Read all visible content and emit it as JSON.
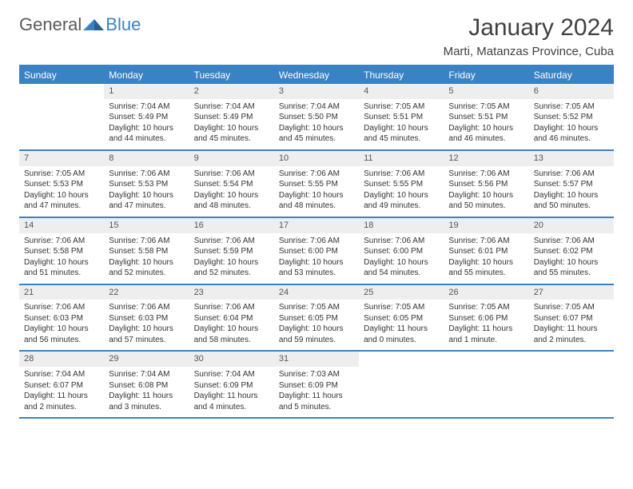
{
  "logo": {
    "part1": "General",
    "part2": "Blue"
  },
  "title": "January 2024",
  "location": "Marti, Matanzas Province, Cuba",
  "colors": {
    "accent": "#3b82c4",
    "header_bg": "#3b82c4",
    "header_text": "#ffffff",
    "daynum_bg": "#eeeeee",
    "text": "#333333",
    "background": "#ffffff"
  },
  "typography": {
    "title_fontsize": 30,
    "location_fontsize": 15,
    "dayheader_fontsize": 12,
    "cell_fontsize": 10
  },
  "day_headers": [
    "Sunday",
    "Monday",
    "Tuesday",
    "Wednesday",
    "Thursday",
    "Friday",
    "Saturday"
  ],
  "weeks": [
    [
      {
        "day": "",
        "sunrise": "",
        "sunset": "",
        "daylight": ""
      },
      {
        "day": "1",
        "sunrise": "Sunrise: 7:04 AM",
        "sunset": "Sunset: 5:49 PM",
        "daylight": "Daylight: 10 hours and 44 minutes."
      },
      {
        "day": "2",
        "sunrise": "Sunrise: 7:04 AM",
        "sunset": "Sunset: 5:49 PM",
        "daylight": "Daylight: 10 hours and 45 minutes."
      },
      {
        "day": "3",
        "sunrise": "Sunrise: 7:04 AM",
        "sunset": "Sunset: 5:50 PM",
        "daylight": "Daylight: 10 hours and 45 minutes."
      },
      {
        "day": "4",
        "sunrise": "Sunrise: 7:05 AM",
        "sunset": "Sunset: 5:51 PM",
        "daylight": "Daylight: 10 hours and 45 minutes."
      },
      {
        "day": "5",
        "sunrise": "Sunrise: 7:05 AM",
        "sunset": "Sunset: 5:51 PM",
        "daylight": "Daylight: 10 hours and 46 minutes."
      },
      {
        "day": "6",
        "sunrise": "Sunrise: 7:05 AM",
        "sunset": "Sunset: 5:52 PM",
        "daylight": "Daylight: 10 hours and 46 minutes."
      }
    ],
    [
      {
        "day": "7",
        "sunrise": "Sunrise: 7:05 AM",
        "sunset": "Sunset: 5:53 PM",
        "daylight": "Daylight: 10 hours and 47 minutes."
      },
      {
        "day": "8",
        "sunrise": "Sunrise: 7:06 AM",
        "sunset": "Sunset: 5:53 PM",
        "daylight": "Daylight: 10 hours and 47 minutes."
      },
      {
        "day": "9",
        "sunrise": "Sunrise: 7:06 AM",
        "sunset": "Sunset: 5:54 PM",
        "daylight": "Daylight: 10 hours and 48 minutes."
      },
      {
        "day": "10",
        "sunrise": "Sunrise: 7:06 AM",
        "sunset": "Sunset: 5:55 PM",
        "daylight": "Daylight: 10 hours and 48 minutes."
      },
      {
        "day": "11",
        "sunrise": "Sunrise: 7:06 AM",
        "sunset": "Sunset: 5:55 PM",
        "daylight": "Daylight: 10 hours and 49 minutes."
      },
      {
        "day": "12",
        "sunrise": "Sunrise: 7:06 AM",
        "sunset": "Sunset: 5:56 PM",
        "daylight": "Daylight: 10 hours and 50 minutes."
      },
      {
        "day": "13",
        "sunrise": "Sunrise: 7:06 AM",
        "sunset": "Sunset: 5:57 PM",
        "daylight": "Daylight: 10 hours and 50 minutes."
      }
    ],
    [
      {
        "day": "14",
        "sunrise": "Sunrise: 7:06 AM",
        "sunset": "Sunset: 5:58 PM",
        "daylight": "Daylight: 10 hours and 51 minutes."
      },
      {
        "day": "15",
        "sunrise": "Sunrise: 7:06 AM",
        "sunset": "Sunset: 5:58 PM",
        "daylight": "Daylight: 10 hours and 52 minutes."
      },
      {
        "day": "16",
        "sunrise": "Sunrise: 7:06 AM",
        "sunset": "Sunset: 5:59 PM",
        "daylight": "Daylight: 10 hours and 52 minutes."
      },
      {
        "day": "17",
        "sunrise": "Sunrise: 7:06 AM",
        "sunset": "Sunset: 6:00 PM",
        "daylight": "Daylight: 10 hours and 53 minutes."
      },
      {
        "day": "18",
        "sunrise": "Sunrise: 7:06 AM",
        "sunset": "Sunset: 6:00 PM",
        "daylight": "Daylight: 10 hours and 54 minutes."
      },
      {
        "day": "19",
        "sunrise": "Sunrise: 7:06 AM",
        "sunset": "Sunset: 6:01 PM",
        "daylight": "Daylight: 10 hours and 55 minutes."
      },
      {
        "day": "20",
        "sunrise": "Sunrise: 7:06 AM",
        "sunset": "Sunset: 6:02 PM",
        "daylight": "Daylight: 10 hours and 55 minutes."
      }
    ],
    [
      {
        "day": "21",
        "sunrise": "Sunrise: 7:06 AM",
        "sunset": "Sunset: 6:03 PM",
        "daylight": "Daylight: 10 hours and 56 minutes."
      },
      {
        "day": "22",
        "sunrise": "Sunrise: 7:06 AM",
        "sunset": "Sunset: 6:03 PM",
        "daylight": "Daylight: 10 hours and 57 minutes."
      },
      {
        "day": "23",
        "sunrise": "Sunrise: 7:06 AM",
        "sunset": "Sunset: 6:04 PM",
        "daylight": "Daylight: 10 hours and 58 minutes."
      },
      {
        "day": "24",
        "sunrise": "Sunrise: 7:05 AM",
        "sunset": "Sunset: 6:05 PM",
        "daylight": "Daylight: 10 hours and 59 minutes."
      },
      {
        "day": "25",
        "sunrise": "Sunrise: 7:05 AM",
        "sunset": "Sunset: 6:05 PM",
        "daylight": "Daylight: 11 hours and 0 minutes."
      },
      {
        "day": "26",
        "sunrise": "Sunrise: 7:05 AM",
        "sunset": "Sunset: 6:06 PM",
        "daylight": "Daylight: 11 hours and 1 minute."
      },
      {
        "day": "27",
        "sunrise": "Sunrise: 7:05 AM",
        "sunset": "Sunset: 6:07 PM",
        "daylight": "Daylight: 11 hours and 2 minutes."
      }
    ],
    [
      {
        "day": "28",
        "sunrise": "Sunrise: 7:04 AM",
        "sunset": "Sunset: 6:07 PM",
        "daylight": "Daylight: 11 hours and 2 minutes."
      },
      {
        "day": "29",
        "sunrise": "Sunrise: 7:04 AM",
        "sunset": "Sunset: 6:08 PM",
        "daylight": "Daylight: 11 hours and 3 minutes."
      },
      {
        "day": "30",
        "sunrise": "Sunrise: 7:04 AM",
        "sunset": "Sunset: 6:09 PM",
        "daylight": "Daylight: 11 hours and 4 minutes."
      },
      {
        "day": "31",
        "sunrise": "Sunrise: 7:03 AM",
        "sunset": "Sunset: 6:09 PM",
        "daylight": "Daylight: 11 hours and 5 minutes."
      },
      {
        "day": "",
        "sunrise": "",
        "sunset": "",
        "daylight": ""
      },
      {
        "day": "",
        "sunrise": "",
        "sunset": "",
        "daylight": ""
      },
      {
        "day": "",
        "sunrise": "",
        "sunset": "",
        "daylight": ""
      }
    ]
  ]
}
